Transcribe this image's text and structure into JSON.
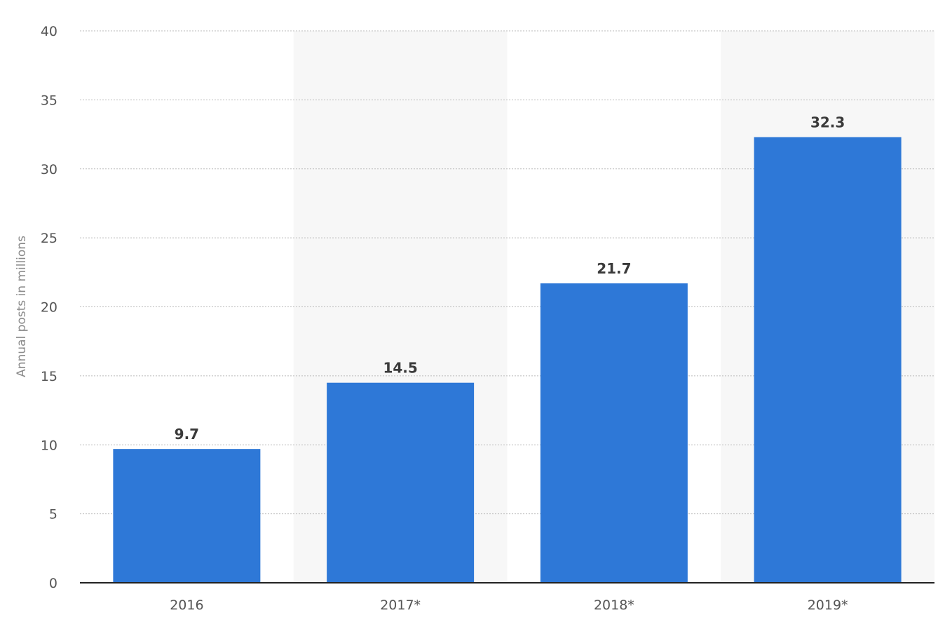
{
  "chart_data": {
    "type": "bar",
    "title": "",
    "xlabel": "",
    "ylabel": "Annual posts in millions",
    "categories": [
      "2016",
      "2017*",
      "2018*",
      "2019*"
    ],
    "values": [
      9.7,
      14.5,
      21.7,
      32.3
    ],
    "value_labels": [
      "9.7",
      "14.5",
      "21.7",
      "32.3"
    ],
    "ylim": [
      0,
      40
    ],
    "yticks": [
      0,
      5,
      10,
      15,
      20,
      25,
      30,
      35,
      40
    ],
    "grid": true,
    "legend": "none",
    "colors": {
      "bar": "#2e78d7",
      "alt_band": "#f7f7f7",
      "grid": "#bbbbbb",
      "axis": "#222222"
    }
  }
}
